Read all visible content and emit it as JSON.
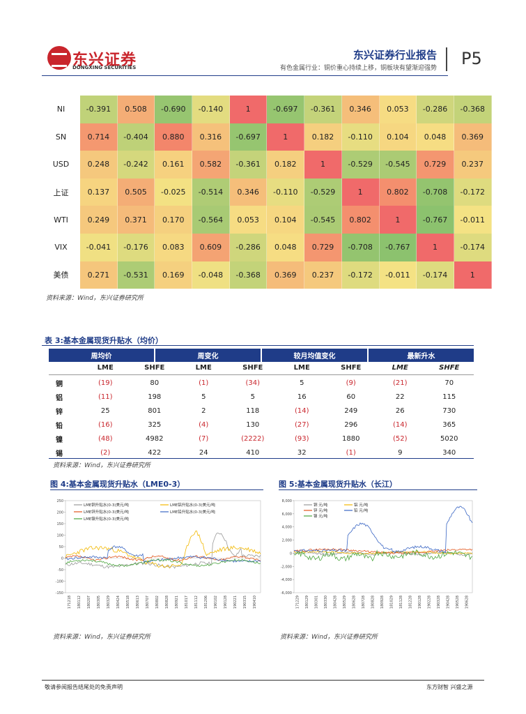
{
  "header": {
    "company_cn": "东兴证券",
    "company_en": "DONGXING SECURITIES",
    "report_type": "东兴证券行业报告",
    "report_subtitle": "有色金属行业：铜价重心持续上移，铜板块有望渐迎强势",
    "page": "P5"
  },
  "correlation": {
    "rows": [
      {
        "label": "NI",
        "values": [
          "-0.391",
          "0.508",
          "-0.690",
          "-0.140",
          "1",
          "-0.697",
          "-0.361",
          "0.346",
          "0.053",
          "-0.286",
          "-0.368"
        ]
      },
      {
        "label": "SN",
        "values": [
          "0.714",
          "-0.404",
          "0.880",
          "0.316",
          "-0.697",
          "1",
          "0.182",
          "-0.110",
          "0.104",
          "0.048",
          "0.369"
        ]
      },
      {
        "label": "USD",
        "values": [
          "0.248",
          "-0.242",
          "0.161",
          "0.582",
          "-0.361",
          "0.182",
          "1",
          "-0.529",
          "-0.545",
          "0.729",
          "0.237"
        ]
      },
      {
        "label": "上证",
        "values": [
          "0.137",
          "0.505",
          "-0.025",
          "-0.514",
          "0.346",
          "-0.110",
          "-0.529",
          "1",
          "0.802",
          "-0.708",
          "-0.172"
        ]
      },
      {
        "label": "WTI",
        "values": [
          "0.249",
          "0.371",
          "0.170",
          "-0.564",
          "0.053",
          "0.104",
          "-0.545",
          "0.802",
          "1",
          "-0.767",
          "-0.011"
        ]
      },
      {
        "label": "VIX",
        "values": [
          "-0.041",
          "-0.176",
          "0.083",
          "0.609",
          "-0.286",
          "0.048",
          "0.729",
          "-0.708",
          "-0.767",
          "1",
          "-0.174"
        ]
      },
      {
        "label": "美债",
        "values": [
          "0.271",
          "-0.531",
          "0.169",
          "-0.048",
          "-0.368",
          "0.369",
          "0.237",
          "-0.172",
          "-0.011",
          "-0.174",
          "1"
        ]
      }
    ],
    "source": "资料来源：Wind，东兴证券研究所"
  },
  "table3": {
    "title": "表 3:基本金属现货升贴水（均价）",
    "groups": [
      "周均价",
      "周变化",
      "较月均值变化",
      "最新升水"
    ],
    "sub": [
      "LME",
      "SHFE",
      "LME",
      "SHFE",
      "LME",
      "SHFE",
      "LME",
      "SHFE"
    ],
    "rows": [
      {
        "label": "铜",
        "values": [
          "(19)",
          "80",
          "(1)",
          "(34)",
          "5",
          "(9)",
          "(21)",
          "70"
        ]
      },
      {
        "label": "铝",
        "values": [
          "(11)",
          "198",
          "5",
          "5",
          "16",
          "60",
          "22",
          "115"
        ]
      },
      {
        "label": "锌",
        "values": [
          "25",
          "801",
          "2",
          "118",
          "(14)",
          "249",
          "26",
          "730"
        ]
      },
      {
        "label": "铅",
        "values": [
          "(16)",
          "325",
          "(4)",
          "130",
          "(27)",
          "296",
          "(14)",
          "365"
        ]
      },
      {
        "label": "镍",
        "values": [
          "(48)",
          "4982",
          "(7)",
          "(2222)",
          "(93)",
          "1880",
          "(52)",
          "5020"
        ]
      },
      {
        "label": "锡",
        "values": [
          "(2)",
          "422",
          "24",
          "410",
          "32",
          "(1)",
          "9",
          "340"
        ]
      }
    ],
    "source": "资料来源：Wind，东兴证券研究所"
  },
  "fig4": {
    "title": "图 4:基本金属现货升贴水（LME0-3）",
    "source": "资料来源：Wind，东兴证券研究所",
    "chart_data": {
      "type": "line",
      "series": [
        {
          "name": "LME铜升贴水(0-3)美元/吨",
          "color": "#999999"
        },
        {
          "name": "LME铝升贴水(0-3)美元/吨",
          "color": "#f2b800"
        },
        {
          "name": "LME锌升贴水(0-3)美元/吨",
          "color": "#e2541a"
        },
        {
          "name": "LME铅升贴水(0-3)美元/吨",
          "color": "#3a66c4"
        },
        {
          "name": "LME镍升贴水(0-3)美元/吨",
          "color": "#4aa53c"
        }
      ],
      "y_ticks": [
        "250",
        "200",
        "150",
        "100",
        "50",
        "0",
        "-50",
        "-100",
        "-150"
      ],
      "ylim": [
        -150,
        250
      ],
      "x_ticks": [
        "171218",
        "180112",
        "180207",
        "180305",
        "180329",
        "180424",
        "180518",
        "180613",
        "180707",
        "180802",
        "180828",
        "180921",
        "181017",
        "181112",
        "181206",
        "190102",
        "190128",
        "190221",
        "190315",
        "190410"
      ]
    }
  },
  "fig5": {
    "title": "图 5:基本金属现货升贴水（长江）",
    "source": "资料来源：Wind，东兴证券研究所",
    "chart_data": {
      "type": "line",
      "series": [
        {
          "name": "铜 元/吨",
          "color": "#999999"
        },
        {
          "name": "铝 元/吨",
          "color": "#f2b800"
        },
        {
          "name": "锌 元/吨",
          "color": "#e2541a"
        },
        {
          "name": "铅 元/吨",
          "color": "#3a66c4"
        },
        {
          "name": "镍 元/吨",
          "color": "#4aa53c"
        }
      ],
      "y_ticks": [
        "8,000",
        "6,000",
        "4,000",
        "2,000",
        "0",
        "-2,000",
        "-4,000",
        "-6,000"
      ],
      "ylim": [
        -6000,
        8000
      ],
      "x_ticks": [
        "171229",
        "180129",
        "180301",
        "180330",
        "180428",
        "180529",
        "180628",
        "180728",
        "180828",
        "180928",
        "181029",
        "181128",
        "181228",
        "190128",
        "190228",
        "190328",
        "190428",
        "190528",
        "190628"
      ]
    }
  },
  "footer": {
    "left": "敬请参阅报告结尾处的免责声明",
    "right": "东方财智  兴盛之源"
  }
}
